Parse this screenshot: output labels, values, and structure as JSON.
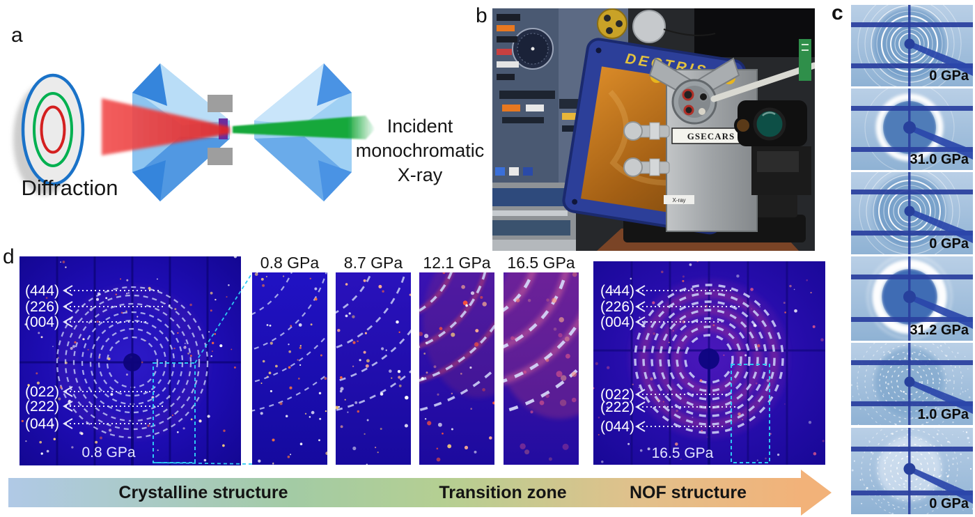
{
  "figure": {
    "panel_labels": {
      "a": "a",
      "b": "b",
      "c": "c",
      "d": "d"
    }
  },
  "panel_a": {
    "diffraction_label": "Diffraction",
    "incident_lines": [
      "Incident",
      "monochromatic",
      "X-ray"
    ],
    "colors": {
      "outer_ring": "#1a72c8",
      "middle_ring": "#00b050",
      "inner_ring": "#d42020",
      "diffracted_beam": "#ef3b3b",
      "incident_beam": "#17a83b",
      "sample": "#6a2fa0"
    }
  },
  "panel_b": {
    "detector_brand": "DECTRIS",
    "mount_label": "GSECARS",
    "xray_label": "X-ray"
  },
  "panel_c": {
    "items": [
      {
        "pressure": "0 GPa",
        "pattern": "sharp crystalline rings"
      },
      {
        "pressure": "31.0 GPa",
        "pattern": "diffuse amorphous halo"
      },
      {
        "pressure": "0 GPa",
        "pattern": "sharp crystalline rings"
      },
      {
        "pressure": "31.2 GPa",
        "pattern": "strong diffuse halo"
      },
      {
        "pressure": "1.0 GPa",
        "pattern": "spotty rings"
      },
      {
        "pressure": "0 GPa",
        "pattern": "spotty rings with bright center"
      }
    ]
  },
  "panel_d": {
    "left_image": {
      "pressure": "0.8 GPa",
      "miller_top": [
        "(444)",
        "(226)",
        "(004)"
      ],
      "miller_bottom": [
        "(022)",
        "(222)",
        "(044)"
      ]
    },
    "right_image": {
      "pressure": "16.5 GPa",
      "miller_top": [
        "(444)",
        "(226)",
        "(004)"
      ],
      "miller_bottom": [
        "(022)",
        "(222)",
        "(044)"
      ]
    },
    "strips": [
      {
        "pressure": "0.8 GPa"
      },
      {
        "pressure": "8.7 GPa"
      },
      {
        "pressure": "12.1 GPa"
      },
      {
        "pressure": "16.5 GPa"
      }
    ],
    "arrow": {
      "labels": [
        "Crystalline structure",
        "Transition zone",
        "NOF structure"
      ],
      "gradient": {
        "start": "#b0c9e6",
        "middle": "#b5cf92",
        "end": "#f2b279"
      }
    },
    "zoom_box_color": "#2ec8f2"
  }
}
